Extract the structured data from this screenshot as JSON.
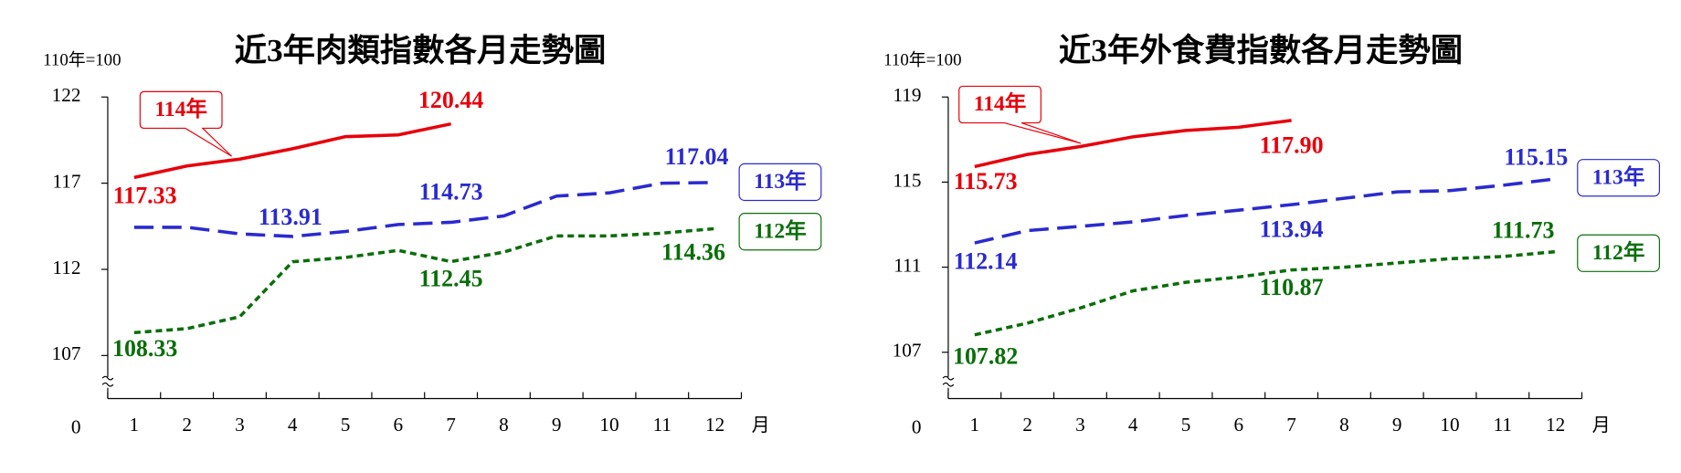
{
  "chart_data": [
    {
      "type": "line",
      "title": "近3年肉類指數各月走勢圖",
      "y_label": "110年=100",
      "x_label": "月",
      "categories": [
        "1",
        "2",
        "3",
        "4",
        "5",
        "6",
        "7",
        "8",
        "9",
        "10",
        "11",
        "12"
      ],
      "ylim": [
        105,
        122
      ],
      "yticks": [
        0,
        107,
        112,
        117,
        122
      ],
      "axis_break": true,
      "series": [
        {
          "name": "114年",
          "color": "#e8000b",
          "values": [
            117.33,
            118.0,
            118.4,
            119.0,
            119.7,
            119.8,
            120.44,
            null,
            null,
            null,
            null,
            null
          ],
          "value_labels": [
            "117.33",
            null,
            null,
            null,
            null,
            null,
            "120.44",
            null,
            null,
            null,
            null,
            null
          ]
        },
        {
          "name": "113年",
          "color": "#2a2ad0",
          "values": [
            114.44,
            114.44,
            114.06,
            113.91,
            114.2,
            114.6,
            114.73,
            115.1,
            116.25,
            116.44,
            117.0,
            117.04
          ],
          "value_labels": [
            null,
            null,
            null,
            "113.91",
            null,
            null,
            "114.73",
            null,
            null,
            null,
            null,
            "117.04"
          ]
        },
        {
          "name": "112年",
          "color": "#0a6e0a",
          "values": [
            108.33,
            108.56,
            109.25,
            112.44,
            112.69,
            113.1,
            112.45,
            113.0,
            113.94,
            113.94,
            114.1,
            114.36
          ],
          "value_labels": [
            "108.33",
            null,
            null,
            null,
            null,
            null,
            "112.45",
            null,
            null,
            null,
            null,
            "114.36"
          ]
        }
      ]
    },
    {
      "type": "line",
      "title": "近3年外食費指數各月走勢圖",
      "y_label": "110年=100",
      "x_label": "月",
      "categories": [
        "1",
        "2",
        "3",
        "4",
        "5",
        "6",
        "7",
        "8",
        "9",
        "10",
        "11",
        "12"
      ],
      "ylim": [
        105,
        119
      ],
      "yticks": [
        0,
        107,
        111,
        115,
        119
      ],
      "axis_break": true,
      "series": [
        {
          "name": "114年",
          "color": "#e8000b",
          "values": [
            115.73,
            116.3,
            116.67,
            117.13,
            117.43,
            117.58,
            117.9,
            null,
            null,
            null,
            null,
            null
          ],
          "value_labels": [
            "115.73",
            null,
            null,
            null,
            null,
            null,
            "117.90",
            null,
            null,
            null,
            null,
            null
          ]
        },
        {
          "name": "113年",
          "color": "#2a2ad0",
          "values": [
            112.14,
            112.72,
            112.92,
            113.13,
            113.43,
            113.68,
            113.94,
            114.24,
            114.54,
            114.6,
            114.85,
            115.15
          ],
          "value_labels": [
            "112.14",
            null,
            null,
            null,
            null,
            null,
            "113.94",
            null,
            null,
            null,
            null,
            "115.15"
          ]
        },
        {
          "name": "112年",
          "color": "#0a6e0a",
          "values": [
            107.82,
            108.37,
            109.08,
            109.89,
            110.29,
            110.54,
            110.87,
            111.0,
            111.2,
            111.4,
            111.5,
            111.73
          ],
          "value_labels": [
            "107.82",
            null,
            null,
            null,
            null,
            null,
            "110.87",
            null,
            null,
            null,
            null,
            "111.73"
          ]
        }
      ]
    }
  ]
}
